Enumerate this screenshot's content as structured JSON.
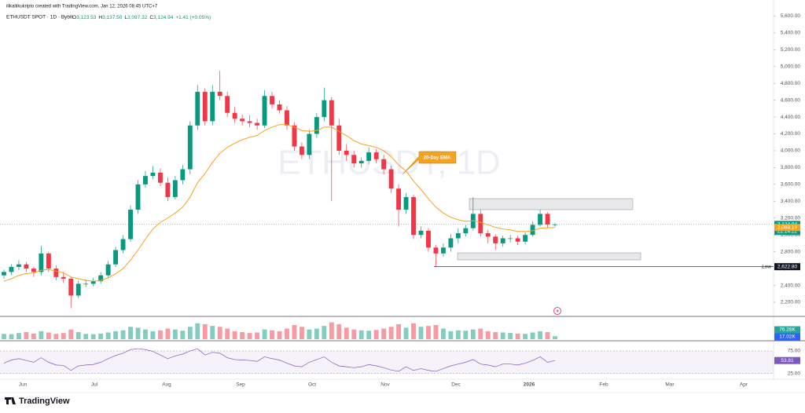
{
  "chart_data": {
    "type": "candlestick",
    "credit": "ilikaliikukripto created with TradingView.com, Jan 12, 2026 08:45 UTC+7",
    "symbol": "ETHUSDT SPOT · 1D · Bybit",
    "header_fields": [
      {
        "prefix": "O",
        "label": "3,123.53"
      },
      {
        "prefix": "H",
        "label": "3,137.50"
      },
      {
        "prefix": "L",
        "label": "3,097.32"
      },
      {
        "prefix": "C",
        "label": "3,124.94"
      }
    ],
    "change_label": "+1.41 (+0.05%)",
    "watermark": "ETHUSDT, 1D",
    "annotation": "20-Day EMA",
    "up_color": "#089981",
    "down_color": "#f23645",
    "open": [
      2520,
      2560,
      2620,
      2650,
      2600,
      2560,
      2780,
      2600,
      2500,
      2480,
      2280,
      2420,
      2420,
      2450,
      2520,
      2650,
      2820,
      2950,
      3300,
      3600,
      3700,
      3740,
      3620,
      3450,
      3650,
      3780,
      4300,
      4700,
      4350,
      4700,
      4650,
      4450,
      4380,
      4350,
      4330,
      4300,
      4650,
      4550,
      4480,
      4300,
      4050,
      3950,
      4200,
      4400,
      4600,
      4300,
      4000,
      3950,
      3850,
      3880,
      3980,
      3900,
      3780,
      3550,
      3300,
      3450,
      3000,
      3050,
      2850,
      2780,
      2850,
      2960,
      3020,
      3080,
      3250,
      3020,
      2980,
      2900,
      2960,
      2960,
      2920,
      3000,
      3120,
      3250,
      3123.53
    ],
    "high": [
      2590,
      2650,
      2700,
      2680,
      2620,
      2870,
      2800,
      2640,
      2560,
      2500,
      2460,
      2470,
      2490,
      2560,
      2690,
      2860,
      3000,
      3350,
      3650,
      3760,
      3820,
      3790,
      3680,
      3700,
      3830,
      4350,
      4780,
      4740,
      4780,
      4950,
      4700,
      4520,
      4430,
      4420,
      4380,
      4720,
      4700,
      4600,
      4530,
      4340,
      4100,
      4250,
      4450,
      4750,
      4640,
      4380,
      4080,
      4000,
      3920,
      4040,
      4020,
      3950,
      3820,
      3600,
      3500,
      3480,
      3100,
      3080,
      2880,
      2900,
      3010,
      3080,
      3120,
      3450,
      3300,
      3060,
      3010,
      2990,
      3000,
      2990,
      3030,
      3160,
      3300,
      3270,
      3137.5
    ],
    "low": [
      2480,
      2520,
      2580,
      2560,
      2500,
      2520,
      2560,
      2460,
      2430,
      2130,
      2250,
      2380,
      2390,
      2420,
      2490,
      2620,
      2780,
      2920,
      3250,
      3560,
      3660,
      3580,
      3400,
      3420,
      3600,
      3720,
      4250,
      4300,
      4300,
      4600,
      4400,
      4330,
      4300,
      4280,
      4250,
      4270,
      4500,
      4440,
      4250,
      4000,
      3900,
      3900,
      4150,
      4350,
      3400,
      3950,
      3880,
      3800,
      3800,
      3840,
      3850,
      3720,
      3500,
      3100,
      3250,
      2950,
      2960,
      2800,
      2622.8,
      2740,
      2800,
      2900,
      2980,
      3050,
      2980,
      2900,
      2820,
      2860,
      2910,
      2880,
      2890,
      2980,
      3100,
      3080,
      3097.32
    ],
    "close": [
      2560,
      2620,
      2650,
      2600,
      2560,
      2780,
      2600,
      2500,
      2480,
      2280,
      2420,
      2420,
      2450,
      2520,
      2650,
      2820,
      2950,
      3300,
      3600,
      3700,
      3740,
      3620,
      3450,
      3650,
      3780,
      4300,
      4700,
      4350,
      4700,
      4650,
      4450,
      4380,
      4350,
      4330,
      4300,
      4650,
      4550,
      4480,
      4300,
      4050,
      3950,
      4200,
      4400,
      4600,
      4300,
      4000,
      3950,
      3850,
      3880,
      3980,
      3900,
      3780,
      3550,
      3300,
      3450,
      3000,
      3050,
      2850,
      2780,
      2850,
      2960,
      3020,
      3080,
      3250,
      3020,
      2980,
      2900,
      2960,
      2960,
      2920,
      3000,
      3120,
      3250,
      3123.53,
      3124.94
    ],
    "ema_values": [
      2450,
      2480,
      2520,
      2540,
      2550,
      2580,
      2590,
      2570,
      2550,
      2500,
      2480,
      2460,
      2450,
      2460,
      2490,
      2540,
      2600,
      2700,
      2820,
      2950,
      3070,
      3150,
      3200,
      3260,
      3330,
      3450,
      3620,
      3730,
      3860,
      3970,
      4040,
      4090,
      4130,
      4160,
      4180,
      4240,
      4280,
      4310,
      4310,
      4280,
      4240,
      4230,
      4240,
      4280,
      4280,
      4230,
      4180,
      4120,
      4080,
      4060,
      4040,
      4000,
      3930,
      3830,
      3760,
      3640,
      3540,
      3430,
      3330,
      3260,
      3210,
      3180,
      3160,
      3170,
      3150,
      3120,
      3090,
      3070,
      3060,
      3040,
      3040,
      3050,
      3080,
      3085,
      3088.19
    ],
    "ema_color": "#f7a21b",
    "ema_label": "3,088.19",
    "last_price_label": "3,124.94",
    "countdown": "22:14:22",
    "low_marker": {
      "text": "Low",
      "value": 2622.8,
      "label": "2,622.80"
    },
    "ylim": [
      2060,
      5790
    ],
    "yticks": [
      {
        "value": 2200,
        "label": "2,200.00"
      },
      {
        "value": 2400,
        "label": "2,400.00"
      },
      {
        "value": 2600,
        "label": "2,600.00"
      },
      {
        "value": 2800,
        "label": "2,800.00"
      },
      {
        "value": 3000,
        "label": "3,000.00"
      },
      {
        "value": 3200,
        "label": "3,200.00"
      },
      {
        "value": 3400,
        "label": "3,400.00"
      },
      {
        "value": 3600,
        "label": "3,600.00"
      },
      {
        "value": 3800,
        "label": "3,800.00"
      },
      {
        "value": 4000,
        "label": "4,000.00"
      },
      {
        "value": 4200,
        "label": "4,200.00"
      },
      {
        "value": 4400,
        "label": "4,400.00"
      },
      {
        "value": 4600,
        "label": "4,600.00"
      },
      {
        "value": 4800,
        "label": "4,800.00"
      },
      {
        "value": 5000,
        "label": "5,000.00"
      },
      {
        "value": 5200,
        "label": "5,200.00"
      },
      {
        "value": 5400,
        "label": "5,400.00"
      },
      {
        "value": 5600,
        "label": "5,600.00"
      }
    ],
    "x_labels": [
      "Jun",
      "Jul",
      "Aug",
      "Sep",
      "Oct",
      "Nov",
      "Dec",
      "2026",
      "Feb",
      "Mar",
      "Apr"
    ],
    "volume": [
      30,
      28,
      35,
      40,
      32,
      45,
      38,
      30,
      35,
      55,
      40,
      30,
      28,
      32,
      38,
      45,
      50,
      70,
      65,
      55,
      45,
      50,
      60,
      55,
      48,
      70,
      90,
      85,
      75,
      70,
      60,
      45,
      40,
      35,
      38,
      55,
      50,
      45,
      60,
      80,
      70,
      55,
      60,
      75,
      95,
      85,
      65,
      55,
      50,
      48,
      52,
      60,
      70,
      85,
      65,
      90,
      70,
      75,
      80,
      60,
      45,
      50,
      48,
      55,
      60,
      45,
      40,
      38,
      35,
      32,
      30,
      38,
      45,
      40,
      17.02
    ],
    "volume_lim": [
      0,
      120
    ],
    "volume_labels": [
      "76.28K",
      "17.02K"
    ],
    "rsi_values": [
      48,
      55,
      58,
      54,
      50,
      60,
      50,
      44,
      43,
      32,
      42,
      44,
      45,
      50,
      58,
      65,
      70,
      78,
      80,
      78,
      74,
      66,
      58,
      64,
      68,
      75,
      80,
      66,
      72,
      70,
      60,
      56,
      55,
      54,
      52,
      62,
      58,
      55,
      48,
      42,
      40,
      50,
      56,
      62,
      50,
      42,
      40,
      38,
      40,
      45,
      42,
      38,
      33,
      30,
      40,
      32,
      36,
      32,
      30,
      36,
      42,
      46,
      50,
      56,
      46,
      44,
      40,
      46,
      46,
      44,
      48,
      54,
      62,
      50,
      53.81
    ],
    "rsi_lim": [
      16,
      94
    ],
    "rsi_ticks": [
      {
        "value": 75,
        "label": "75.00"
      },
      {
        "value": 25,
        "label": "25.00"
      }
    ],
    "rsi_value_label": "53.81",
    "rsi_color": "#7e57c2",
    "footer": "TradingView"
  }
}
